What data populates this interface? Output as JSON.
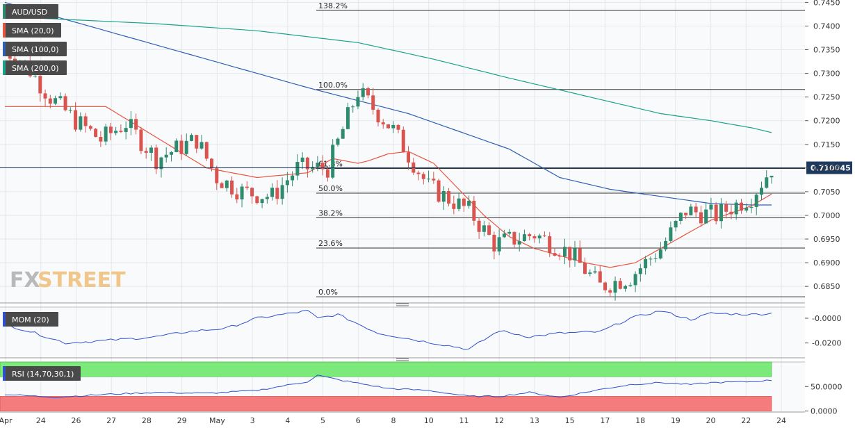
{
  "legend": {
    "pair": "AUD/USD",
    "sma20": "SMA (20,0)",
    "sma100": "SMA (100,0)",
    "sma200": "SMA (200,0)",
    "mom": "MOM (20)",
    "rsi": "RSI (14,70,30,1)"
  },
  "logo": {
    "part1": "FX",
    "part2": "STREET"
  },
  "colors": {
    "bull": "#2e8b6e",
    "bear": "#d9534f",
    "sma20": "#e8553f",
    "sma100": "#2f5fb3",
    "sma200": "#1aa38a",
    "mom_line": "#3050d0",
    "rsi_line": "#3050d0",
    "rsi_upper": "#7bea7b",
    "rsi_lower": "#f47c7c",
    "fib_line": "#333333",
    "price_line": "#1f3a5f",
    "price_tag": "#1f3a5f"
  },
  "x_labels": [
    "Apr",
    "24",
    "26",
    "27",
    "28",
    "29",
    "May",
    "3",
    "4",
    "5",
    "6",
    "8",
    "10",
    "11",
    "12",
    "13",
    "15",
    "17",
    "18",
    "19",
    "20",
    "22",
    "24"
  ],
  "main_axis": {
    "ticks": [
      "0.7450",
      "0.7400",
      "0.7350",
      "0.7300",
      "0.7250",
      "0.7200",
      "0.7150",
      "0.7100",
      "0.7050",
      "0.7000",
      "0.6950",
      "0.6900",
      "0.6850"
    ],
    "ylim": [
      0.6815,
      0.7455
    ]
  },
  "mom_axis": {
    "ticks": [
      "-0.0000",
      "-0.0200"
    ],
    "ylim": [
      -0.032,
      0.009
    ]
  },
  "rsi_axis": {
    "ticks": [
      "50.0000",
      "0.0000"
    ],
    "ylim": [
      -2,
      100
    ],
    "upper": 70,
    "lower": 30
  },
  "current_price": {
    "label": "0.710045",
    "value": 0.71005
  },
  "fibonacci": [
    {
      "label": "138.2%",
      "value": 0.7433
    },
    {
      "label": "100.0%",
      "value": 0.7266
    },
    {
      "label": "61.8%",
      "value": 0.7099
    },
    {
      "label": "50.0%",
      "value": 0.7047
    },
    {
      "label": "38.2%",
      "value": 0.6995
    },
    {
      "label": "23.6%",
      "value": 0.6931
    },
    {
      "label": "0.0%",
      "value": 0.6828
    }
  ],
  "chart_data": {
    "type": "candlestick",
    "title": "AUD/USD",
    "candle_count": 153,
    "anchors": {
      "index": [
        0,
        4,
        9,
        14,
        19,
        24,
        30,
        38,
        42,
        47,
        53,
        58,
        64,
        70,
        77,
        84,
        92,
        97,
        105,
        112,
        118,
        124,
        130,
        135,
        141,
        148,
        152
      ],
      "close": [
        0.735,
        0.732,
        0.725,
        0.72,
        0.716,
        0.7195,
        0.712,
        0.716,
        0.708,
        0.705,
        0.704,
        0.71,
        0.71,
        0.7262,
        0.718,
        0.706,
        0.701,
        0.694,
        0.696,
        0.692,
        0.685,
        0.687,
        0.693,
        0.701,
        0.7,
        0.704,
        0.71
      ]
    },
    "sma20": {
      "index": [
        20,
        30,
        40,
        50,
        60,
        65,
        70,
        72,
        76,
        80,
        85,
        95,
        100,
        105,
        115,
        120,
        125,
        130,
        135,
        140,
        148,
        152
      ],
      "value": [
        0.723,
        0.7165,
        0.71,
        0.708,
        0.709,
        0.712,
        0.711,
        0.7115,
        0.713,
        0.7135,
        0.711,
        0.7,
        0.6955,
        0.693,
        0.69,
        0.689,
        0.69,
        0.693,
        0.696,
        0.699,
        0.702,
        0.7045
      ]
    },
    "sma100": {
      "index": [
        0,
        20,
        40,
        60,
        80,
        100,
        110,
        120,
        130,
        140,
        148,
        152
      ],
      "value": [
        0.745,
        0.739,
        0.733,
        0.727,
        0.7215,
        0.714,
        0.708,
        0.7055,
        0.704,
        0.7025,
        0.7022,
        0.7022
      ]
    },
    "sma200": {
      "index": [
        0,
        30,
        50,
        70,
        85,
        100,
        110,
        120,
        130,
        140,
        148,
        152
      ],
      "value": [
        0.742,
        0.7405,
        0.739,
        0.7365,
        0.733,
        0.729,
        0.7265,
        0.724,
        0.7215,
        0.72,
        0.7185,
        0.7175
      ]
    },
    "mom": {
      "index": [
        0,
        6,
        12,
        20,
        30,
        36,
        44,
        50,
        60,
        62,
        66,
        74,
        82,
        92,
        98,
        104,
        110,
        118,
        124,
        130,
        136,
        140,
        148,
        152
      ],
      "value": [
        -0.005,
        -0.012,
        -0.02,
        -0.018,
        -0.015,
        -0.011,
        -0.008,
        0.0,
        0.006,
        0.0,
        0.003,
        -0.012,
        -0.018,
        -0.025,
        -0.01,
        -0.015,
        -0.012,
        -0.011,
        0.0,
        0.006,
        -0.001,
        0.004,
        0.003,
        0.004
      ]
    },
    "rsi": {
      "index": [
        0,
        10,
        20,
        30,
        40,
        50,
        60,
        62,
        66,
        76,
        84,
        92,
        98,
        104,
        110,
        118,
        124,
        130,
        136,
        140,
        148,
        152
      ],
      "value": [
        34,
        28,
        34,
        38,
        36,
        42,
        60,
        73,
        64,
        46,
        42,
        30,
        30,
        38,
        28,
        44,
        54,
        58,
        54,
        58,
        60,
        63
      ]
    }
  }
}
